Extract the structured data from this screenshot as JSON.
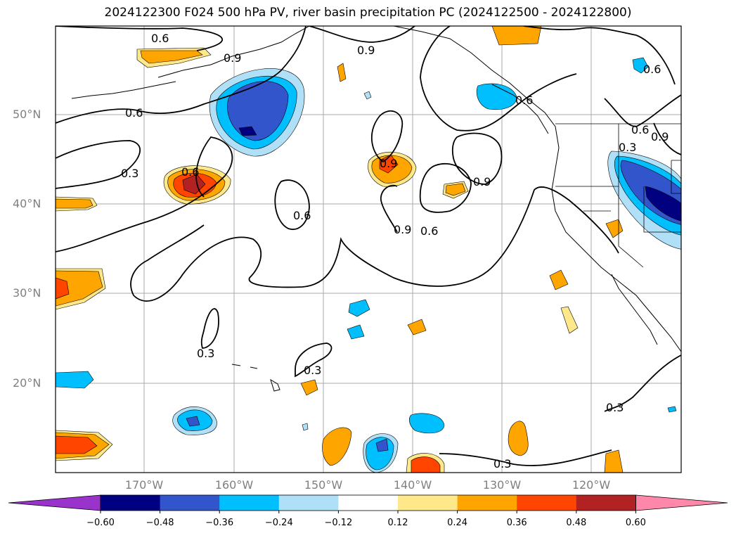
{
  "title": "2024122300 F024 500 hPa PV, river basin precipitation PC (2024122500 - 2024122800)",
  "lat_labels": [
    "50°N",
    "40°N",
    "30°N",
    "20°N"
  ],
  "lon_labels": [
    "170°W",
    "160°W",
    "150°W",
    "140°W",
    "130°W",
    "120°W"
  ],
  "contour_labels": [
    "0.6",
    "0.9",
    "0.6",
    "0.3",
    "0.6",
    "0.9",
    "0.9",
    "0.9",
    "0.6",
    "0.9",
    "0.6",
    "0.3",
    "0.3",
    "0.3",
    "0.3",
    "0.6",
    "0.3",
    "0.6",
    "0.9",
    "0.6"
  ],
  "colorbar": {
    "ticks": [
      "−0.60",
      "−0.48",
      "−0.36",
      "−0.24",
      "−0.12",
      "0.12",
      "0.24",
      "0.36",
      "0.48",
      "0.60"
    ],
    "colors": [
      "#9933cc",
      "#000080",
      "#3355cc",
      "#00bfff",
      "#b0e0f8",
      "#ffffff",
      "#ffe88a",
      "#ffa500",
      "#ff4500",
      "#b22222",
      "#ff88aa"
    ]
  }
}
